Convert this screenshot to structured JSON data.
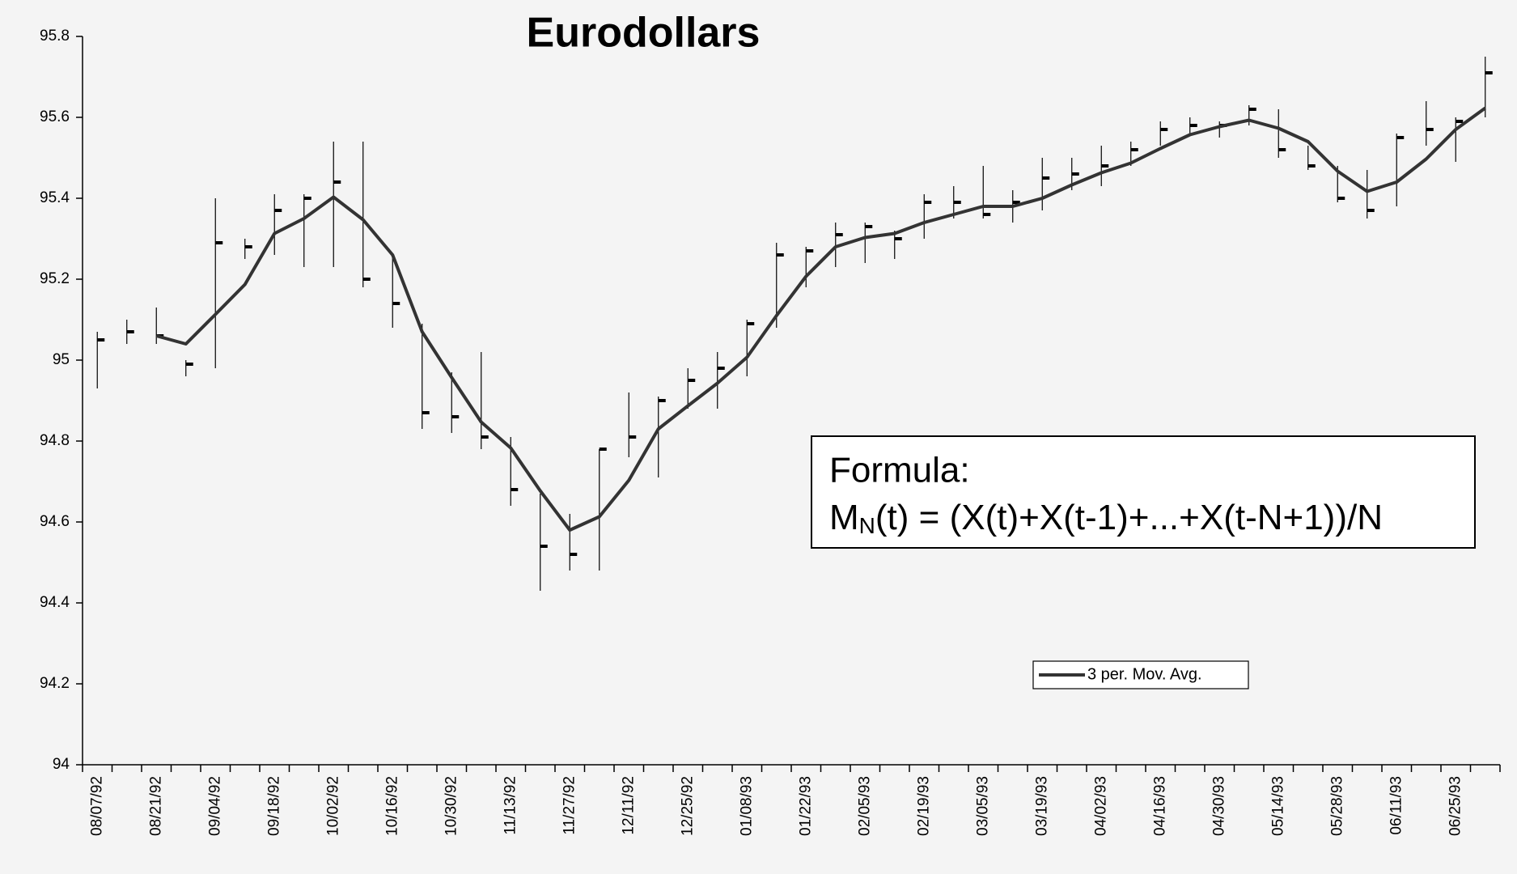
{
  "chart_data": {
    "type": "hlc",
    "title": "Eurodollars",
    "categories": [
      "08/07/92",
      null,
      "08/21/92",
      null,
      "09/04/92",
      null,
      "09/18/92",
      null,
      "10/02/92",
      null,
      "10/16/92",
      null,
      "10/30/92",
      null,
      "11/13/92",
      null,
      "11/27/92",
      null,
      "12/11/92",
      null,
      "12/25/92",
      null,
      "01/08/93",
      null,
      "01/22/93",
      null,
      "02/05/93",
      null,
      "02/19/93",
      null,
      "03/05/93",
      null,
      "03/19/93",
      null,
      "04/02/93",
      null,
      "04/16/93",
      null,
      "04/30/93",
      null,
      "05/14/93",
      null,
      "05/28/93",
      null,
      "06/11/93",
      null,
      "06/25/93",
      null
    ],
    "high": [
      95.07,
      95.1,
      95.13,
      95.0,
      95.4,
      95.3,
      95.41,
      95.41,
      95.54,
      95.54,
      95.26,
      95.09,
      94.97,
      95.02,
      94.81,
      94.67,
      94.62,
      94.78,
      94.92,
      94.91,
      94.98,
      95.02,
      95.1,
      95.29,
      95.28,
      95.34,
      95.34,
      95.32,
      95.41,
      95.43,
      95.48,
      95.42,
      95.5,
      95.5,
      95.53,
      95.54,
      95.59,
      95.6,
      95.59,
      95.63,
      95.62,
      95.53,
      95.48,
      95.47,
      95.56,
      95.64,
      95.6,
      95.75
    ],
    "low": [
      94.93,
      95.04,
      95.04,
      94.96,
      94.98,
      95.25,
      95.26,
      95.23,
      95.23,
      95.18,
      95.08,
      94.83,
      94.82,
      94.78,
      94.64,
      94.43,
      94.48,
      94.48,
      94.76,
      94.71,
      94.88,
      94.88,
      94.96,
      95.08,
      95.18,
      95.23,
      95.24,
      95.25,
      95.3,
      95.35,
      95.35,
      95.34,
      95.37,
      95.42,
      95.43,
      95.48,
      95.53,
      95.56,
      95.55,
      95.58,
      95.5,
      95.47,
      95.39,
      95.35,
      95.38,
      95.53,
      95.49,
      95.6
    ],
    "close": [
      95.05,
      95.07,
      95.06,
      94.99,
      95.29,
      95.28,
      95.37,
      95.4,
      95.44,
      95.2,
      95.14,
      94.87,
      94.86,
      94.81,
      94.68,
      94.54,
      94.52,
      94.78,
      94.81,
      94.9,
      94.95,
      94.98,
      95.09,
      95.26,
      95.27,
      95.31,
      95.33,
      95.3,
      95.39,
      95.39,
      95.36,
      95.39,
      95.45,
      95.46,
      95.48,
      95.52,
      95.57,
      95.58,
      95.58,
      95.62,
      95.52,
      95.48,
      95.4,
      95.37,
      95.55,
      95.57,
      95.59,
      95.71
    ],
    "bar_color": "#000000",
    "series": [
      {
        "name": "3 per. Mov. Avg.",
        "color": "#333333",
        "values": [
          null,
          null,
          95.06,
          95.04,
          95.113,
          95.187,
          95.313,
          95.35,
          95.403,
          95.347,
          95.26,
          95.07,
          94.957,
          94.847,
          94.783,
          94.677,
          94.58,
          94.613,
          94.703,
          94.83,
          94.887,
          94.943,
          95.007,
          95.11,
          95.207,
          95.28,
          95.303,
          95.313,
          95.34,
          95.36,
          95.38,
          95.38,
          95.4,
          95.433,
          95.463,
          95.487,
          95.523,
          95.557,
          95.577,
          95.593,
          95.573,
          95.54,
          95.467,
          95.417,
          95.44,
          95.497,
          95.57,
          95.623
        ]
      }
    ],
    "ylim": [
      94,
      95.8
    ],
    "yticks": [
      94,
      94.2,
      94.4,
      94.6,
      94.8,
      95,
      95.2,
      95.4,
      95.6,
      95.8
    ],
    "grid": false,
    "legend": "bottom-right",
    "annotation": {
      "title": "Formula:",
      "formula": {
        "base": "M",
        "sub": "N",
        "rest": "(t) = (X(t)+X(t-1)+...+X(t-N+1))/N"
      }
    }
  }
}
